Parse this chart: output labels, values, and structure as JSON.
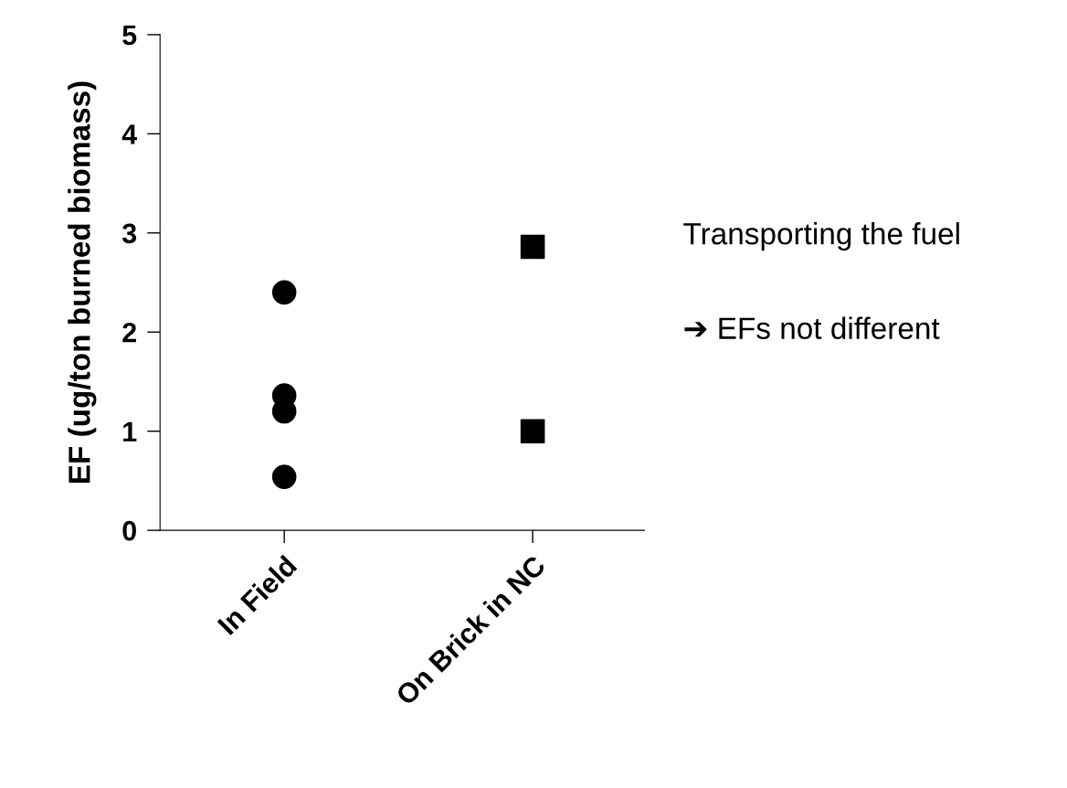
{
  "chart_data": {
    "type": "scatter",
    "ylabel": "EF (ug/ton burned biomass)",
    "categories": [
      "In Field",
      "On Brick in NC"
    ],
    "series": [
      {
        "color": "#000000",
        "marker": "circle",
        "x": [
          "In Field",
          "In Field",
          "In Field",
          "In Field"
        ],
        "values": [
          2.4,
          1.36,
          1.2,
          0.54
        ]
      },
      {
        "color": "#000000",
        "marker": "square",
        "x": [
          "On Brick in NC",
          "On Brick in NC"
        ],
        "values": [
          2.86,
          1.0
        ]
      }
    ],
    "ylim": [
      0,
      5
    ],
    "yticks": [
      0,
      1,
      2,
      3,
      4,
      5
    ],
    "grid": false,
    "legend": false,
    "annotations": [
      "Transporting the fuel",
      "➔ EFs not different"
    ]
  }
}
